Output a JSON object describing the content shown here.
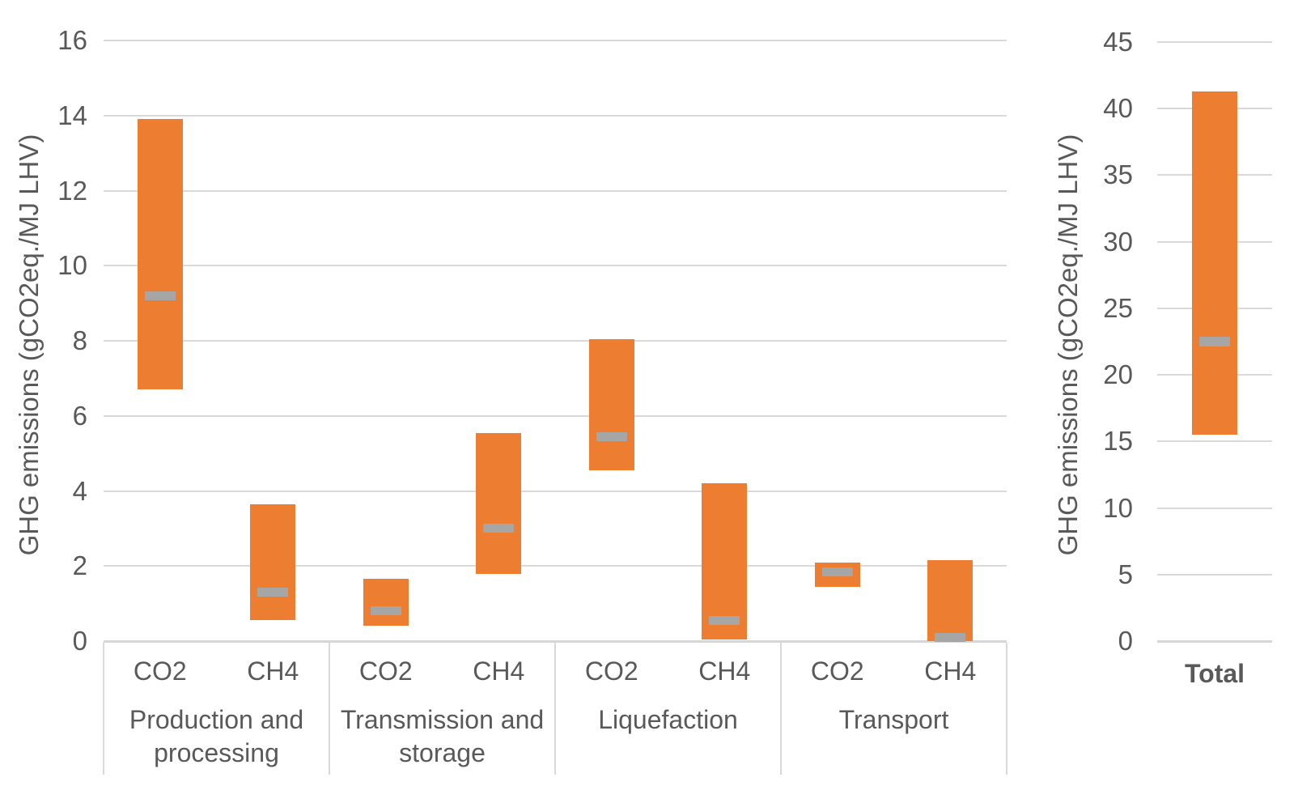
{
  "page": {
    "background": "#ffffff"
  },
  "chart_data": [
    {
      "type": "bar",
      "subtype": "floating-range",
      "title": "",
      "xlabel": "",
      "ylabel": "GHG emissions (gCO2eq./MJ LHV)",
      "ylim": [
        0,
        16
      ],
      "yticks": [
        0,
        2,
        4,
        6,
        8,
        10,
        12,
        14,
        16
      ],
      "grid": true,
      "legend": "none",
      "groups": [
        {
          "label": "Production and processing",
          "bold": false,
          "bars": [
            {
              "label": "CO2",
              "low": 6.7,
              "high": 13.9,
              "marker": 9.2
            },
            {
              "label": "CH4",
              "low": 0.55,
              "high": 3.65,
              "marker": 1.3
            }
          ]
        },
        {
          "label": "Transmission and storage",
          "bold": false,
          "bars": [
            {
              "label": "CO2",
              "low": 0.4,
              "high": 1.65,
              "marker": 0.8
            },
            {
              "label": "CH4",
              "low": 1.8,
              "high": 5.55,
              "marker": 3.0
            }
          ]
        },
        {
          "label": "Liquefaction",
          "bold": false,
          "bars": [
            {
              "label": "CO2",
              "low": 4.55,
              "high": 8.05,
              "marker": 5.45
            },
            {
              "label": "CH4",
              "low": 0.05,
              "high": 4.2,
              "marker": 0.55
            }
          ]
        },
        {
          "label": "Transport",
          "bold": false,
          "bars": [
            {
              "label": "CO2",
              "low": 1.45,
              "high": 2.1,
              "marker": 1.85
            },
            {
              "label": "CH4",
              "low": 0.0,
              "high": 2.15,
              "marker": 0.1
            }
          ]
        }
      ],
      "colors": {
        "bar": "#ED7D31",
        "marker": "#A6A6A6",
        "gridline": "#D9D9D9",
        "axis_line": "#D6D6D6",
        "text": "#595959"
      }
    },
    {
      "type": "bar",
      "subtype": "floating-range",
      "title": "",
      "xlabel": "",
      "ylabel": "GHG emissions (gCO2eq./MJ LHV)",
      "ylim": [
        0,
        45
      ],
      "yticks": [
        0,
        5,
        10,
        15,
        20,
        25,
        30,
        35,
        40,
        45
      ],
      "grid": true,
      "legend": "none",
      "groups": [
        {
          "label": "Total",
          "bold": true,
          "bars": [
            {
              "label": "",
              "low": 15.5,
              "high": 41.3,
              "marker": 22.5
            }
          ]
        }
      ],
      "colors": {
        "bar": "#ED7D31",
        "marker": "#A6A6A6",
        "gridline": "#D9D9D9",
        "axis_line": "#D6D6D6",
        "text": "#595959"
      }
    }
  ]
}
